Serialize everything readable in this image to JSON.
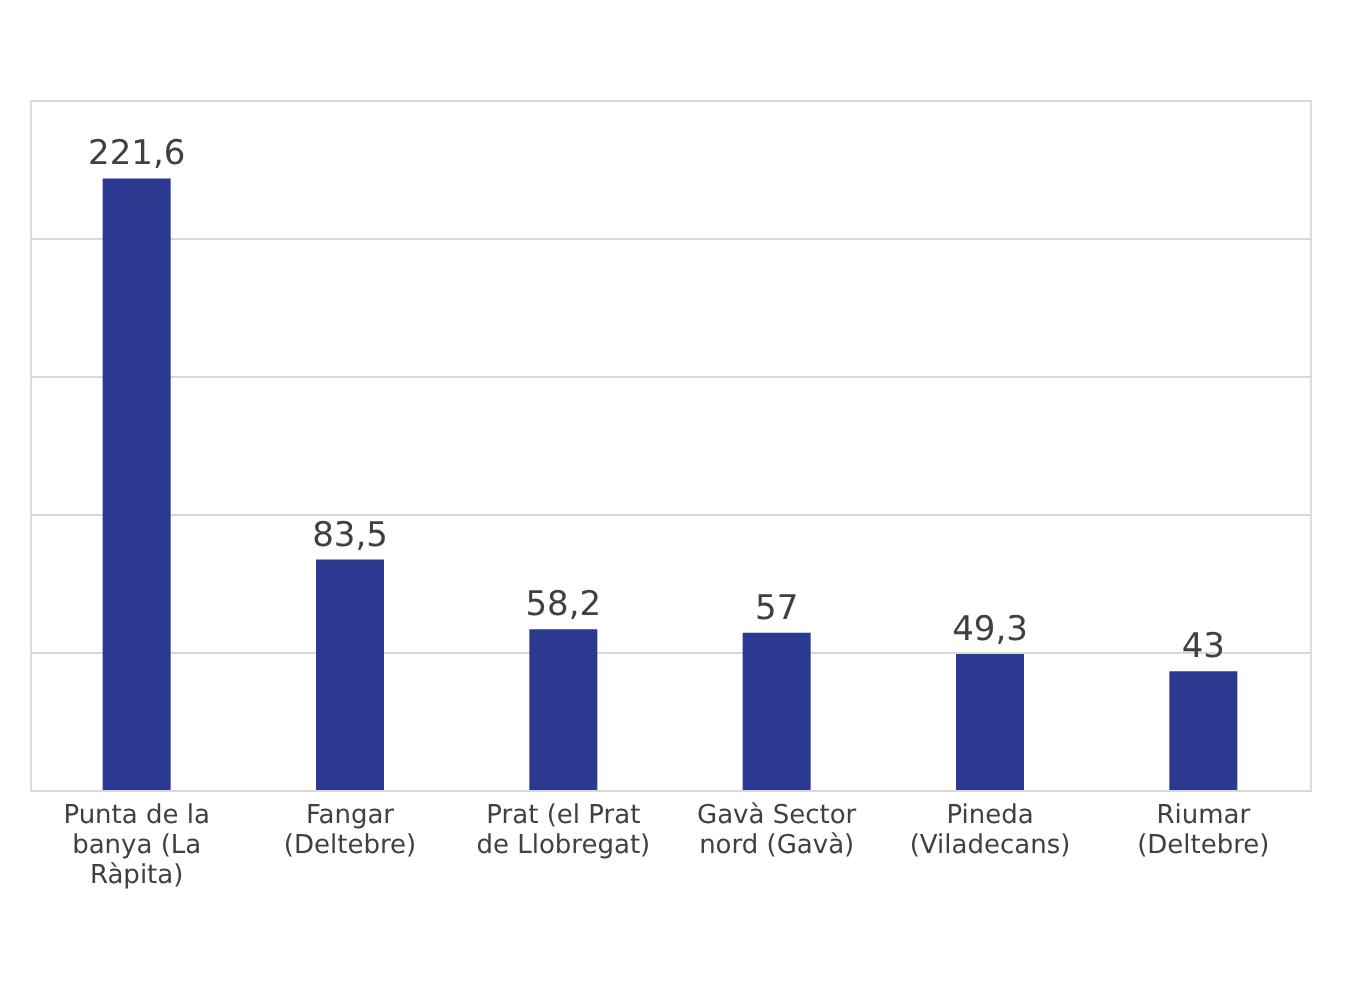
{
  "chart_data": {
    "type": "bar",
    "categories": [
      "Punta de la banya (La Ràpita)",
      "Fangar (Deltebre)",
      "Prat (el Prat de Llobregat)",
      "Gavà Sector nord (Gavà)",
      "Pineda (Viladecans)",
      "Riumar (Deltebre)"
    ],
    "values": [
      221.6,
      83.5,
      58.2,
      57,
      49.3,
      43
    ],
    "value_labels": [
      "221,6",
      "83,5",
      "58,2",
      "57",
      "49,3",
      "43"
    ],
    "color": "#2b3990",
    "ylim": [
      0,
      250
    ],
    "yticks": [
      {
        "value": 0,
        "label": null
      },
      {
        "value": 50,
        "label": null
      },
      {
        "value": 100,
        "label": null
      },
      {
        "value": 150,
        "label": null
      },
      {
        "value": 200,
        "label": null
      },
      {
        "value": 250,
        "label": null
      }
    ],
    "grid": "y",
    "tick_labels": "x"
  }
}
